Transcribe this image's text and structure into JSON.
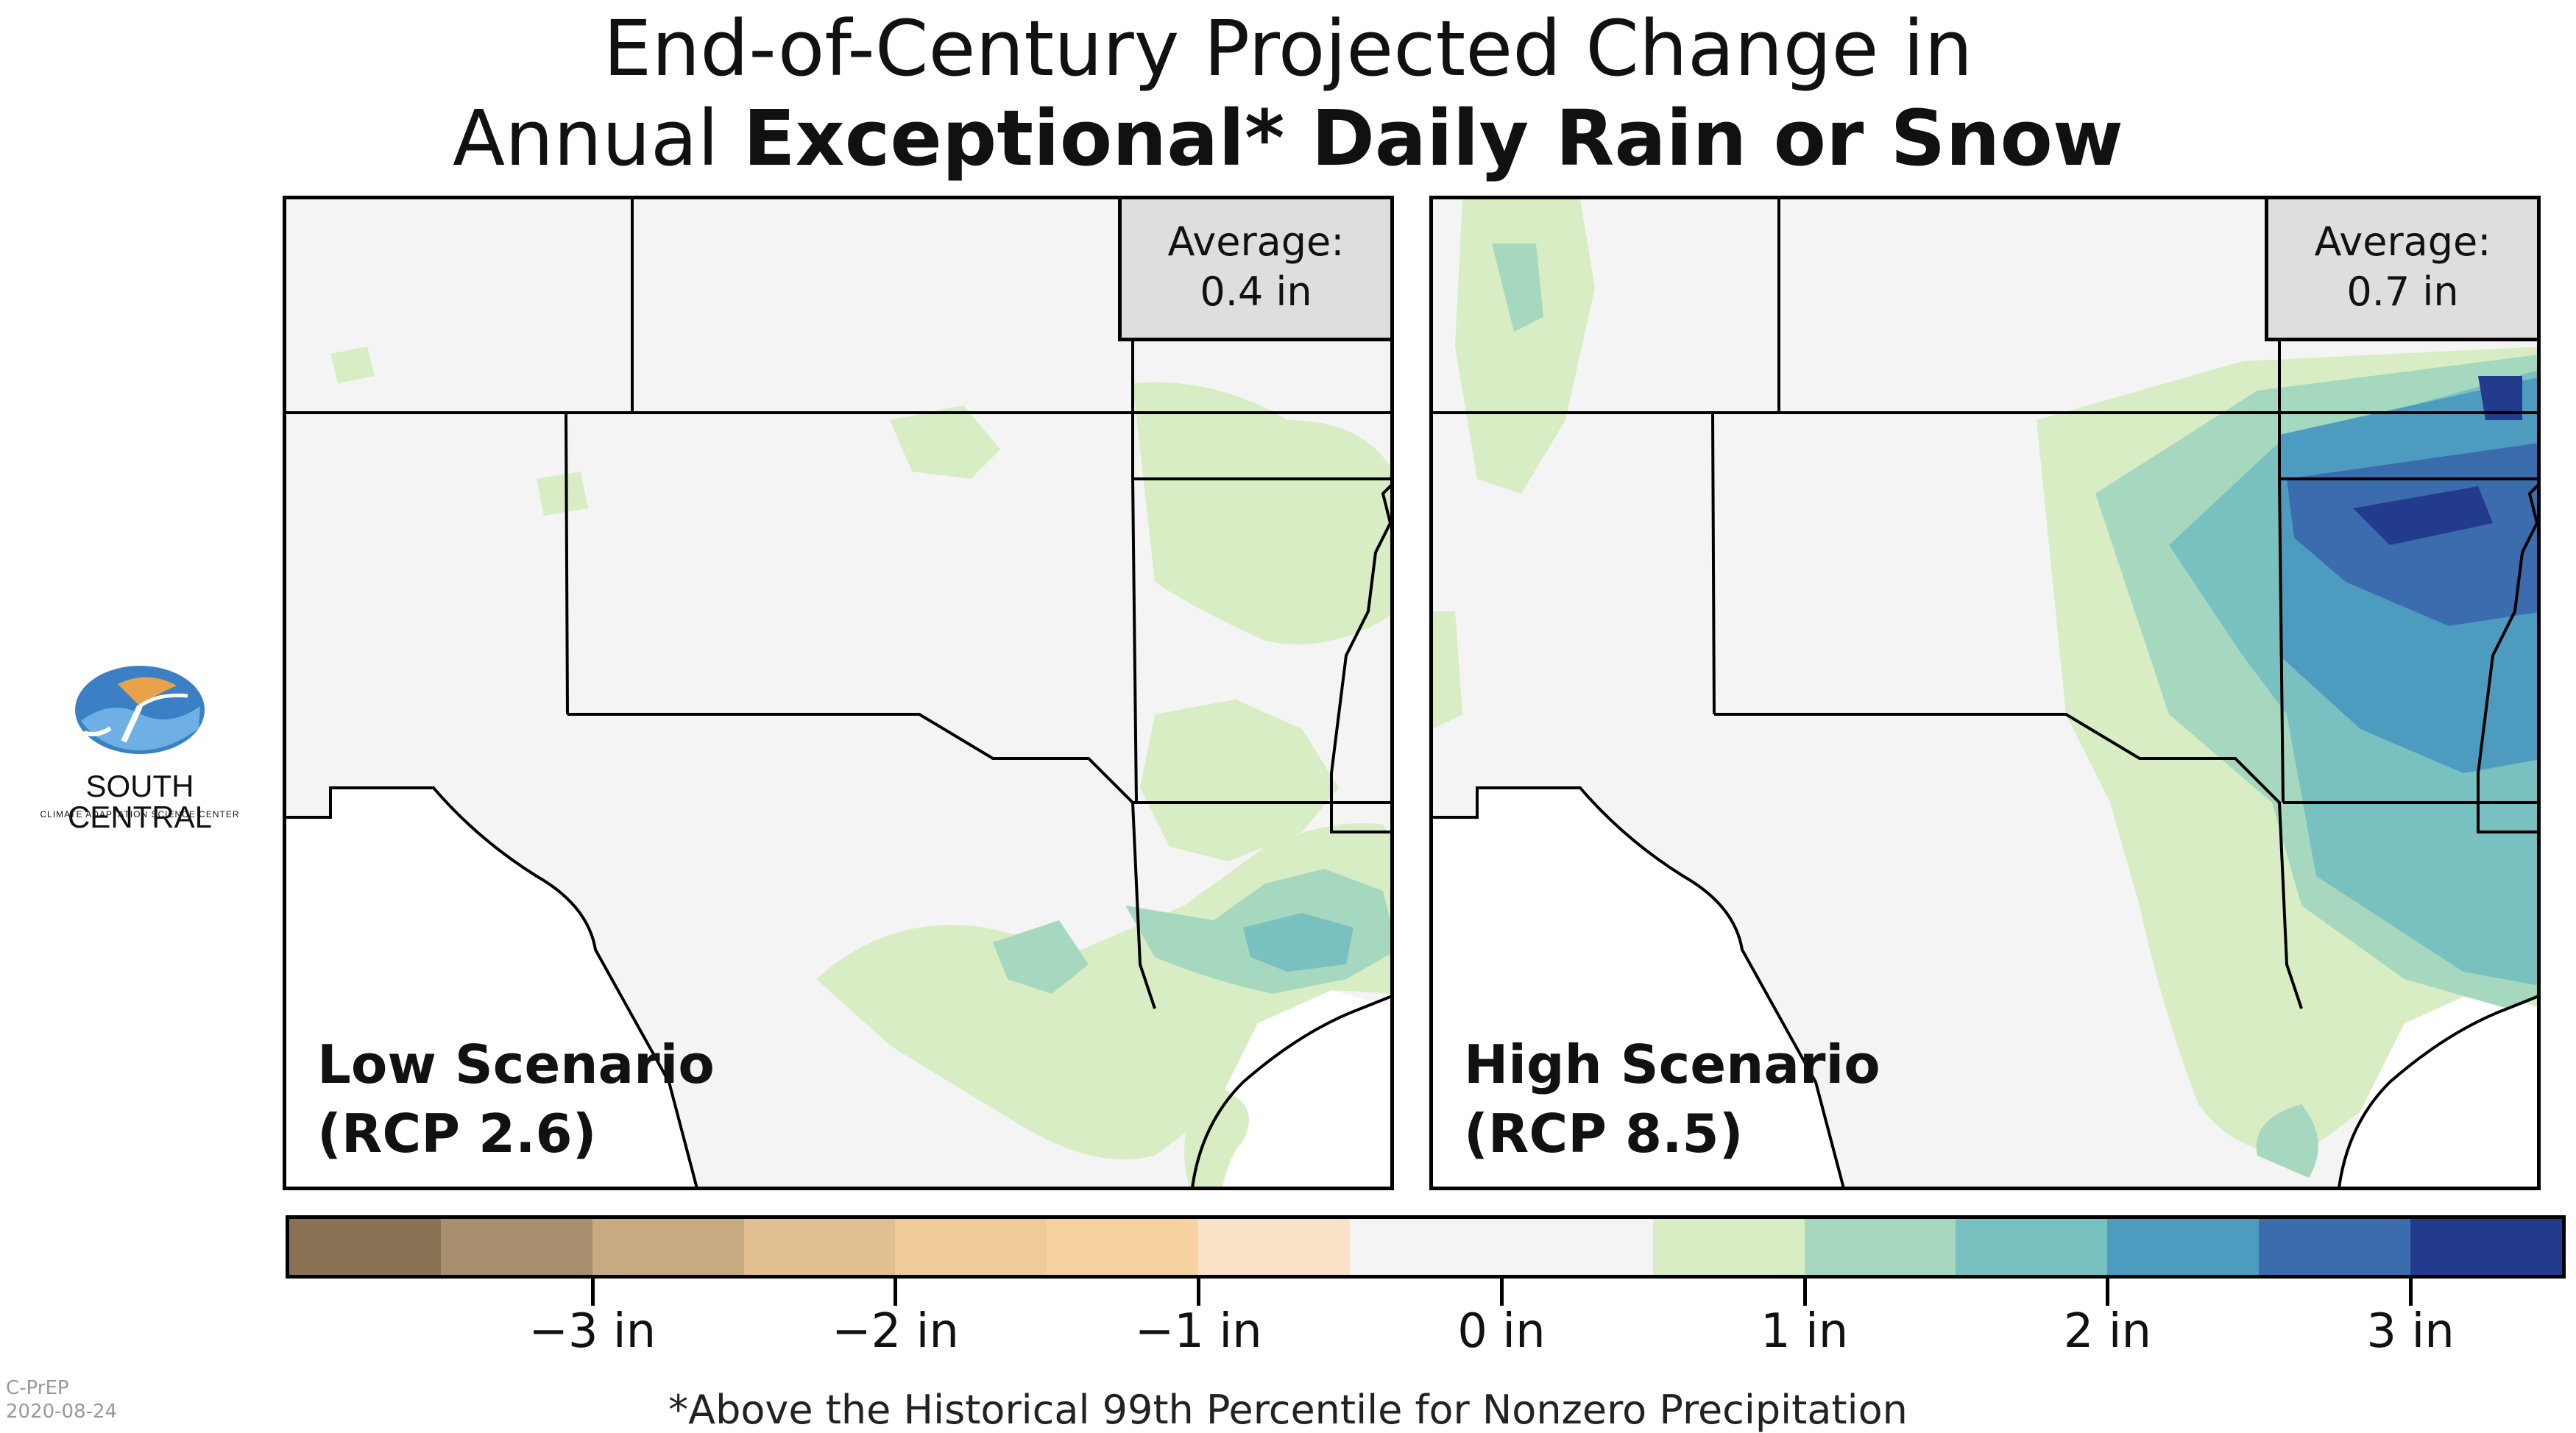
{
  "title": {
    "line1": "End-of-Century Projected Change in",
    "line2_prefix": "Annual ",
    "line2_bold": "Exceptional* Daily Rain or Snow"
  },
  "panels": [
    {
      "average_label": "Average:",
      "average_value": "0.4 in",
      "scenario_name": "Low Scenario",
      "scenario_rcp": "(RCP 2.6)"
    },
    {
      "average_label": "Average:",
      "average_value": "0.7 in",
      "scenario_name": "High Scenario",
      "scenario_rcp": "(RCP 8.5)"
    }
  ],
  "legend": {
    "colors": [
      "#8a7355",
      "#a88f6e",
      "#c7a982",
      "#e2bf91",
      "#eecb98",
      "#f6d3a0",
      "#f8e2c8",
      "#f4f4f4",
      "#f4f4f4",
      "#d8edc3",
      "#a6d8bf",
      "#78c1c0",
      "#4d9cc0",
      "#3a6cae",
      "#233b8c"
    ],
    "ticks": [
      "−3 in",
      "−2 in",
      "−1 in",
      "0 in",
      "1 in",
      "2 in",
      "3 in"
    ],
    "min": -4,
    "max": 3.5
  },
  "footnote": "*Above the Historical 99th Percentile for Nonzero Precipitation",
  "logo": {
    "name": "SOUTH CENTRAL",
    "subtitle": "CLIMATE ADAPTATION SCIENCE CENTER"
  },
  "credit": {
    "source": "C-PrEP",
    "date": "2020-08-24"
  }
}
